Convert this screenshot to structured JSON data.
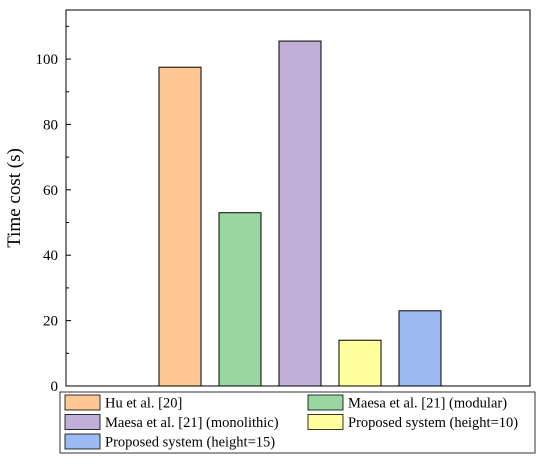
{
  "chart_data": {
    "type": "bar",
    "ylabel": "Time cost (s)",
    "xlabel": "",
    "ylim": [
      0,
      115
    ],
    "yticks": [
      0,
      20,
      40,
      60,
      80,
      100
    ],
    "grid": false,
    "legend_position": "bottom",
    "series": [
      {
        "name": "Hu et al. [20]",
        "value": 97.5,
        "color": "#FFC793"
      },
      {
        "name": "Maesa et al. [21] (modular)",
        "value": 53,
        "color": "#98D8A0"
      },
      {
        "name": "Maesa et al. [21] (monolithic)",
        "value": 105.5,
        "color": "#C2AFD8"
      },
      {
        "name": "Proposed system (height=10)",
        "value": 14,
        "color": "#FFFF9E"
      },
      {
        "name": "Proposed system (height=15)",
        "value": 23,
        "color": "#9DBAF4"
      }
    ]
  }
}
